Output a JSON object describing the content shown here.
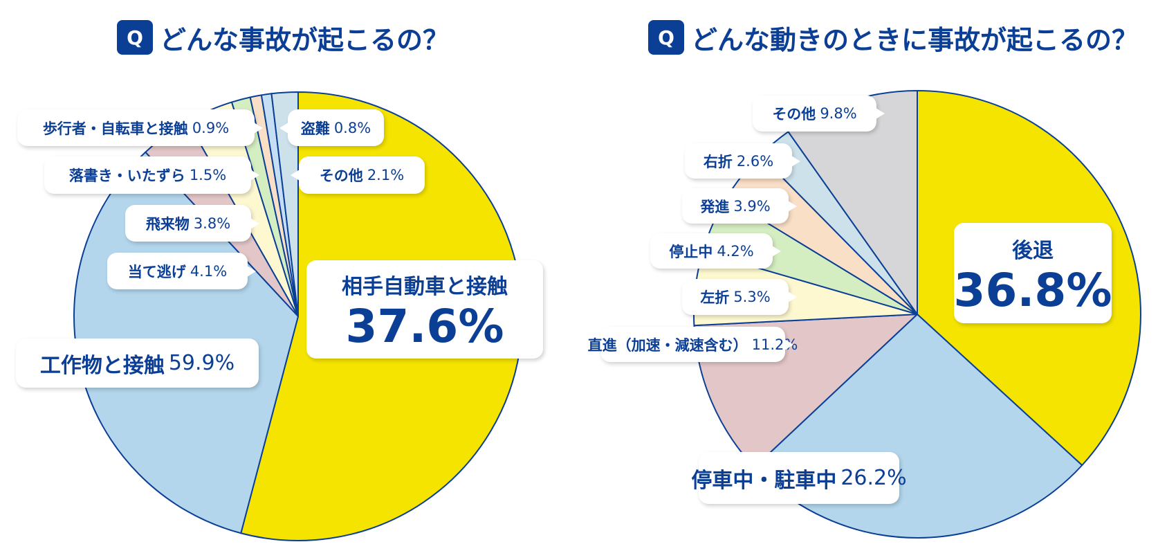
{
  "chart_data": [
    {
      "type": "pie",
      "title_badge": "Q",
      "title": "どんな事故が起こるの？",
      "slices": [
        {
          "value": 59.9,
          "color": "#f5e400"
        },
        {
          "value": 37.6,
          "color": "#b3d6ec"
        },
        {
          "value": 4.1,
          "color": "#e2c6c8"
        },
        {
          "value": 3.8,
          "color": "#fdf8d0"
        },
        {
          "value": 1.5,
          "color": "#d4edc1"
        },
        {
          "value": 0.9,
          "color": "#f8dfc6"
        },
        {
          "value": 0.8,
          "color": "#c6def4"
        },
        {
          "value": 2.1,
          "color": "#cde1ea"
        }
      ],
      "labels": [
        {
          "name": "相手自動車と接触",
          "pct": "37.6%"
        },
        {
          "name": "工作物と接触",
          "pct": "59.9%"
        },
        {
          "name": "当て逃げ",
          "pct": "4.1%"
        },
        {
          "name": "飛来物",
          "pct": "3.8%"
        },
        {
          "name": "落書き・いたずら",
          "pct": "1.5%"
        },
        {
          "name": "歩行者・自転車と接触",
          "pct": "0.9%"
        },
        {
          "name": "盗難",
          "pct": "0.8%"
        },
        {
          "name": "その他",
          "pct": "2.1%"
        }
      ]
    },
    {
      "type": "pie",
      "title_badge": "Q",
      "title": "どんな動きのときに事故が起こるの？",
      "slices": [
        {
          "value": 36.8,
          "color": "#f5e400"
        },
        {
          "value": 26.2,
          "color": "#b3d6ec"
        },
        {
          "value": 11.2,
          "color": "#e2c6c8"
        },
        {
          "value": 5.3,
          "color": "#fdf8d0"
        },
        {
          "value": 4.2,
          "color": "#d4edc1"
        },
        {
          "value": 3.9,
          "color": "#f8dfc6"
        },
        {
          "value": 2.6,
          "color": "#cde1ea"
        },
        {
          "value": 9.8,
          "color": "#d6d6d8"
        }
      ],
      "labels": [
        {
          "name": "後退",
          "pct": "36.8%"
        },
        {
          "name": "停車中・駐車中",
          "pct": "26.2%"
        },
        {
          "name": "直進（加速・減速含む）",
          "pct": "11.2%"
        },
        {
          "name": "左折",
          "pct": "5.3%"
        },
        {
          "name": "停止中",
          "pct": "4.2%"
        },
        {
          "name": "発進",
          "pct": "3.9%"
        },
        {
          "name": "右折",
          "pct": "2.6%"
        },
        {
          "name": "その他",
          "pct": "9.8%"
        }
      ]
    }
  ],
  "colors": {
    "text": "#0b3f96",
    "outline": "#0b3f96"
  }
}
